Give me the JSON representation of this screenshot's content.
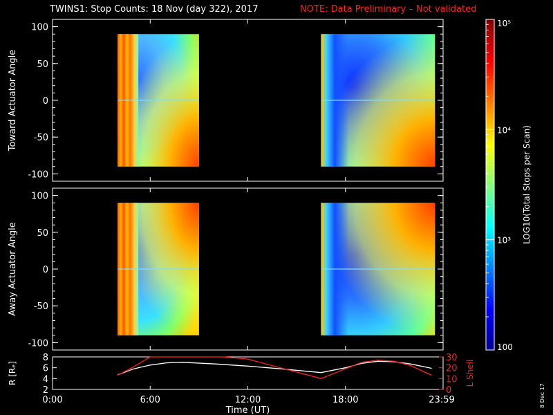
{
  "title": "TWINS1: Stop Counts: 18 Nov (day 322), 2017",
  "note": "NOTE: Data Preliminary – Not validated",
  "stamp": "8 Dec 17",
  "colors": {
    "axes": "#ffffff",
    "background": "#000000",
    "note": "#ff2020",
    "lshell": "#ff2020",
    "radius": "#ffffff"
  },
  "chart_data": [
    {
      "type": "heatmap",
      "ylabel": "Toward Actuator Angle",
      "ylim": [
        -110,
        110
      ],
      "yticks": [
        100,
        50,
        0,
        -50,
        -100
      ],
      "xlim": [
        0,
        24
      ],
      "data_blocks": [
        {
          "x": [
            4,
            9
          ],
          "y": [
            -90,
            90
          ]
        },
        {
          "x": [
            16.5,
            23.5
          ],
          "y": [
            -90,
            90
          ]
        }
      ]
    },
    {
      "type": "heatmap",
      "ylabel": "Away Actuator Angle",
      "ylim": [
        -110,
        110
      ],
      "yticks": [
        100,
        50,
        0,
        -50,
        -100
      ],
      "xlim": [
        0,
        24
      ],
      "data_blocks": [
        {
          "x": [
            4,
            9
          ],
          "y": [
            -90,
            90
          ]
        },
        {
          "x": [
            16.5,
            23.5
          ],
          "y": [
            -90,
            90
          ]
        }
      ]
    },
    {
      "type": "line",
      "ylabel": "R [Rₑ]",
      "y2label": "L Shell",
      "ylim": [
        2,
        8
      ],
      "yticks": [
        2,
        4,
        6,
        8
      ],
      "y2lim": [
        0,
        30
      ],
      "y2ticks": [
        0,
        10,
        20,
        30
      ],
      "xlabel": "Time (UT)",
      "xticks": [
        0,
        6,
        12,
        18,
        24
      ],
      "xtick_labels": [
        "0:00",
        "6:00",
        "12:00",
        "18:00",
        "23:59"
      ],
      "series": [
        {
          "axis": "left",
          "color": "#ffffff",
          "x": [
            4,
            5,
            6,
            7,
            8,
            10,
            12,
            14,
            16.5,
            18,
            19,
            20,
            21,
            22,
            23.3
          ],
          "y": [
            4.7,
            5.8,
            6.5,
            6.9,
            7.0,
            6.7,
            6.3,
            5.8,
            5.1,
            6.0,
            6.8,
            7.2,
            7.1,
            6.7,
            5.9
          ]
        },
        {
          "axis": "right",
          "color": "#ff2020",
          "x": [
            4,
            5,
            6,
            6.3,
            10.5,
            12,
            14,
            16.5,
            18,
            19,
            20,
            21,
            22,
            23.3
          ],
          "y": [
            13,
            21,
            30,
            32,
            32,
            28,
            20,
            10,
            19,
            25,
            27,
            26,
            22,
            13
          ]
        }
      ]
    },
    {
      "type": "colorbar",
      "label": "LOG10(Total Stops per Scan)",
      "range": [
        100,
        100000
      ],
      "tick_labels": [
        "10⁵",
        "10⁴",
        "10³",
        "100"
      ]
    }
  ]
}
